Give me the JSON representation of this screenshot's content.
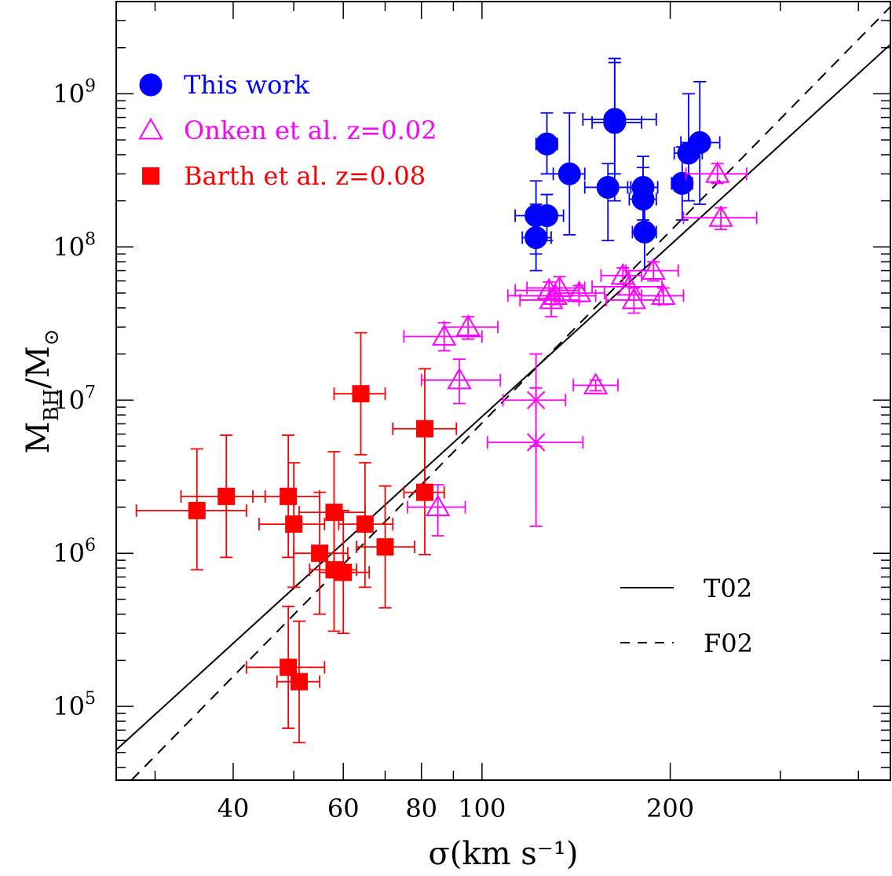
{
  "chart_data": {
    "type": "scatter",
    "x_scale": "log",
    "y_scale": "log",
    "xlim": [
      26,
      450
    ],
    "ylim": [
      33000,
      4000000000
    ],
    "xlabel": "σ(km s⁻¹)",
    "ylabel": "M_BH/M_⊙",
    "x_tick_labels": [
      {
        "value": 40,
        "label": "40"
      },
      {
        "value": 60,
        "label": "60"
      },
      {
        "value": 80,
        "label": "80"
      },
      {
        "value": 100,
        "label": "100"
      },
      {
        "value": 200,
        "label": "200"
      }
    ],
    "y_tick_labels": [
      {
        "value": 100000,
        "mantissa": "10",
        "exp": "5"
      },
      {
        "value": 1000000,
        "mantissa": "10",
        "exp": "6"
      },
      {
        "value": 10000000,
        "mantissa": "10",
        "exp": "7"
      },
      {
        "value": 100000000,
        "mantissa": "10",
        "exp": "8"
      },
      {
        "value": 1000000000,
        "mantissa": "10",
        "exp": "9"
      }
    ],
    "legend_position": "top-left",
    "legend": [
      {
        "label": "This work",
        "marker": "circle",
        "color": "#0000ff"
      },
      {
        "label": "Onken et al. z=0.02",
        "marker": "triangle-open",
        "color": "#ff00ff"
      },
      {
        "label": "Barth et al. z=0.08",
        "marker": "square",
        "color": "#ff0000"
      }
    ],
    "lines_legend": [
      {
        "label": "T02",
        "style": "solid"
      },
      {
        "label": "F02",
        "style": "dashed"
      }
    ],
    "lines": [
      {
        "name": "T02",
        "style": "solid",
        "color": "#000000",
        "points": [
          [
            26,
            52000
          ],
          [
            450,
            2100000000
          ]
        ]
      },
      {
        "name": "F02",
        "style": "dashed",
        "color": "#000000",
        "points": [
          [
            27.5,
            33000
          ],
          [
            450,
            3700000000
          ]
        ]
      }
    ],
    "series": [
      {
        "name": "This work",
        "marker": "circle",
        "color": "#0000ff",
        "points": [
          {
            "x": 122,
            "y": 160000000.0,
            "xerr": [
              113,
              131
            ],
            "yerr": [
              90000000.0,
              270000000.0
            ]
          },
          {
            "x": 122,
            "y": 115000000.0,
            "xerr": [
              116,
              129
            ],
            "yerr": [
              70000000.0,
              190000000.0
            ]
          },
          {
            "x": 127,
            "y": 160000000.0,
            "xerr": [
              119,
              135
            ],
            "yerr": [
              110000000.0,
              220000000.0
            ]
          },
          {
            "x": 127,
            "y": 470000000.0,
            "xerr": [
              122,
              132
            ],
            "yerr": [
              300000000.0,
              750000000.0
            ]
          },
          {
            "x": 138,
            "y": 300000000.0,
            "xerr": [
              130,
              146
            ],
            "yerr": [
              120000000.0,
              750000000.0
            ]
          },
          {
            "x": 159,
            "y": 245000000.0,
            "xerr": [
              146,
              173
            ],
            "yerr": [
              110000000.0,
              350000000.0
            ]
          },
          {
            "x": 163,
            "y": 650000000.0,
            "xerr": [
              150,
              180
            ],
            "yerr": [
              200000000.0,
              1700000000.0
            ]
          },
          {
            "x": 163,
            "y": 680000000.0,
            "xerr": [
              145,
              190
            ],
            "yerr": [
              300000000.0,
              1600000000.0
            ]
          },
          {
            "x": 181,
            "y": 245000000.0,
            "xerr": [
              171,
              191
            ],
            "yerr": [
              150000000.0,
              390000000.0
            ]
          },
          {
            "x": 181,
            "y": 205000000.0,
            "xerr": [
              172,
              190
            ],
            "yerr": [
              130000000.0,
              330000000.0
            ]
          },
          {
            "x": 182,
            "y": 125000000.0,
            "xerr": [
              174,
              190
            ],
            "yerr": [
              70000000.0,
              230000000.0
            ]
          },
          {
            "x": 209,
            "y": 260000000.0,
            "xerr": [
              201,
              217
            ],
            "yerr": [
              150000000.0,
              450000000.0
            ]
          },
          {
            "x": 214,
            "y": 410000000.0,
            "xerr": [
              203,
              225
            ],
            "yerr": [
              200000000.0,
              1000000000.0
            ]
          },
          {
            "x": 223,
            "y": 480000000.0,
            "xerr": [
              208,
              240
            ],
            "yerr": [
              190000000.0,
              1200000000.0
            ]
          }
        ]
      },
      {
        "name": "Onken et al. z=0.02",
        "marker": "triangle-open",
        "color": "#ff00ff",
        "points": [
          {
            "x": 85,
            "y": 2000000.0,
            "xerr": [
              76,
              94
            ],
            "yerr": [
              1300000.0,
              2800000.0
            ]
          },
          {
            "x": 87,
            "y": 26000000.0,
            "xerr": [
              75,
              100
            ],
            "yerr": [
              21000000.0,
              32000000.0
            ]
          },
          {
            "x": 92,
            "y": 13500000.0,
            "xerr": [
              80,
              107
            ],
            "yerr": [
              9500000.0,
              18500000.0
            ]
          },
          {
            "x": 95,
            "y": 30000000.0,
            "xerr": [
              87,
              106
            ],
            "yerr": [
              25000000.0,
              35000000.0
            ]
          },
          {
            "x": 128,
            "y": 52000000.0,
            "xerr": [
              113,
              143
            ],
            "yerr": [
              45000000.0,
              59000000.0
            ]
          },
          {
            "x": 129,
            "y": 45000000.0,
            "xerr": [
              115,
              143
            ],
            "yerr": [
              35000000.0,
              54000000.0
            ]
          },
          {
            "x": 131,
            "y": 48000000.0,
            "xerr": [
              110,
              152
            ],
            "yerr": [
              42000000.0,
              54000000.0
            ]
          },
          {
            "x": 133,
            "y": 54000000.0,
            "xerr": [
              118,
              146
            ],
            "yerr": [
              44000000.0,
              64000000.0
            ]
          },
          {
            "x": 143,
            "y": 50000000.0,
            "xerr": [
              130,
              157
            ],
            "yerr": [
              44000000.0,
              56000000.0
            ]
          },
          {
            "x": 152,
            "y": 12500000.0,
            "xerr": [
              140,
              165
            ],
            "yerr": [
              11500000.0,
              13500000.0
            ]
          },
          {
            "x": 168,
            "y": 65000000.0,
            "xerr": [
              155,
              180
            ],
            "yerr": [
              57000000.0,
              73000000.0
            ]
          },
          {
            "x": 172,
            "y": 55000000.0,
            "xerr": [
              150,
              194
            ],
            "yerr": [
              45000000.0,
              70000000.0
            ]
          },
          {
            "x": 175,
            "y": 45000000.0,
            "xerr": [
              158,
              192
            ],
            "yerr": [
              37000000.0,
              54000000.0
            ]
          },
          {
            "x": 188,
            "y": 70000000.0,
            "xerr": [
              170,
              206
            ],
            "yerr": [
              60000000.0,
              80000000.0
            ]
          },
          {
            "x": 195,
            "y": 48000000.0,
            "xerr": [
              180,
              210
            ],
            "yerr": [
              42000000.0,
              54000000.0
            ]
          },
          {
            "x": 238,
            "y": 300000000.0,
            "xerr": [
              212,
              265
            ],
            "yerr": [
              260000000.0,
              350000000.0
            ]
          },
          {
            "x": 241,
            "y": 155000000.0,
            "xerr": [
              210,
              275
            ],
            "yerr": [
              130000000.0,
              180000000.0
            ]
          }
        ]
      },
      {
        "name": "Onken et al. z=0.02 (x markers)",
        "marker": "asterisk",
        "color": "#ff00ff",
        "points": [
          {
            "x": 122,
            "y": 10000000.0,
            "xerr": [
              108,
              136
            ],
            "yerr": [
              5000000.0,
              20000000.0
            ]
          },
          {
            "x": 122,
            "y": 5300000.0,
            "xerr": [
              102,
              145
            ],
            "yerr": [
              1500000.0,
              12000000.0
            ]
          }
        ]
      },
      {
        "name": "Barth et al. z=0.08",
        "marker": "square",
        "color": "#ff0000",
        "points": [
          {
            "x": 35,
            "y": 1900000.0,
            "xerr": [
              28,
              42
            ],
            "yerr": [
              780000.0,
              4800000.0
            ]
          },
          {
            "x": 39,
            "y": 2350000.0,
            "xerr": [
              33,
              45
            ],
            "yerr": [
              940000.0,
              5900000.0
            ]
          },
          {
            "x": 49,
            "y": 2350000.0,
            "xerr": [
              43,
              55
            ],
            "yerr": [
              940000.0,
              5900000.0
            ]
          },
          {
            "x": 50,
            "y": 1550000.0,
            "xerr": [
              44,
              56
            ],
            "yerr": [
              600000.0,
              3900000.0
            ]
          },
          {
            "x": 49,
            "y": 180000.0,
            "xerr": [
              42,
              56
            ],
            "yerr": [
              72000.0,
              450000.0
            ]
          },
          {
            "x": 51,
            "y": 145000.0,
            "xerr": [
              47,
              55
            ],
            "yerr": [
              58000.0,
              360000.0
            ]
          },
          {
            "x": 55,
            "y": 1000000.0,
            "xerr": [
              50,
              61
            ],
            "yerr": [
              400000.0,
              2500000.0
            ]
          },
          {
            "x": 58,
            "y": 1850000.0,
            "xerr": [
              51,
              65
            ],
            "yerr": [
              740000.0,
              4600000.0
            ]
          },
          {
            "x": 58,
            "y": 780000.0,
            "xerr": [
              53,
              63
            ],
            "yerr": [
              310000.0,
              1950000.0
            ]
          },
          {
            "x": 60,
            "y": 750000.0,
            "xerr": [
              55,
              66
            ],
            "yerr": [
              300000.0,
              1900000.0
            ]
          },
          {
            "x": 64,
            "y": 11000000.0,
            "xerr": [
              58,
              70
            ],
            "yerr": [
              4400000.0,
              27500000.0
            ]
          },
          {
            "x": 65,
            "y": 1550000.0,
            "xerr": [
              59,
              72
            ],
            "yerr": [
              600000.0,
              3900000.0
            ]
          },
          {
            "x": 70,
            "y": 1100000.0,
            "xerr": [
              63,
              78
            ],
            "yerr": [
              440000.0,
              2750000.0
            ]
          },
          {
            "x": 81,
            "y": 6500000.0,
            "xerr": [
              72,
              91
            ],
            "yerr": [
              2600000.0,
              16000000.0
            ]
          },
          {
            "x": 81,
            "y": 2500000.0,
            "xerr": [
              75,
              87
            ],
            "yerr": [
              980000.0,
              6200000.0
            ]
          }
        ]
      }
    ]
  }
}
